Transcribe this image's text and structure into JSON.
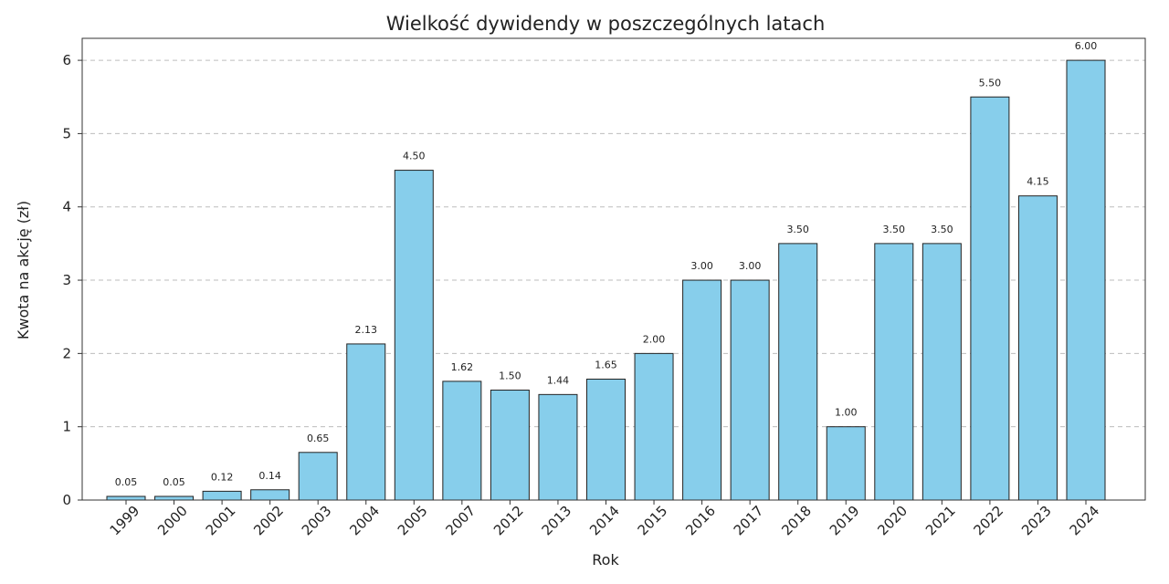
{
  "chart_data": {
    "type": "bar",
    "title": "Wielkość dywidendy w poszczególnych latach",
    "xlabel": "Rok",
    "ylabel": "Kwota na akcję (zł)",
    "categories": [
      "1999",
      "2000",
      "2001",
      "2002",
      "2003",
      "2004",
      "2005",
      "2007",
      "2012",
      "2013",
      "2014",
      "2015",
      "2016",
      "2017",
      "2018",
      "2019",
      "2020",
      "2021",
      "2022",
      "2023",
      "2024"
    ],
    "values": [
      0.05,
      0.05,
      0.12,
      0.14,
      0.65,
      2.13,
      4.5,
      1.62,
      1.5,
      1.44,
      1.65,
      2.0,
      3.0,
      3.0,
      3.5,
      1.0,
      3.5,
      3.5,
      5.5,
      4.15,
      6.0
    ],
    "data_labels": [
      "0.05",
      "0.05",
      "0.12",
      "0.14",
      "0.65",
      "2.13",
      "4.50",
      "1.62",
      "1.50",
      "1.44",
      "1.65",
      "2.00",
      "3.00",
      "3.00",
      "3.50",
      "1.00",
      "3.50",
      "3.50",
      "5.50",
      "4.15",
      "6.00"
    ],
    "ylim": [
      0,
      6.3
    ],
    "yticks": [
      0,
      1,
      2,
      3,
      4,
      5,
      6
    ],
    "grid": "horizontal-dashed",
    "bar_color": "#87ceeb",
    "bar_edge_color": "#222222"
  }
}
